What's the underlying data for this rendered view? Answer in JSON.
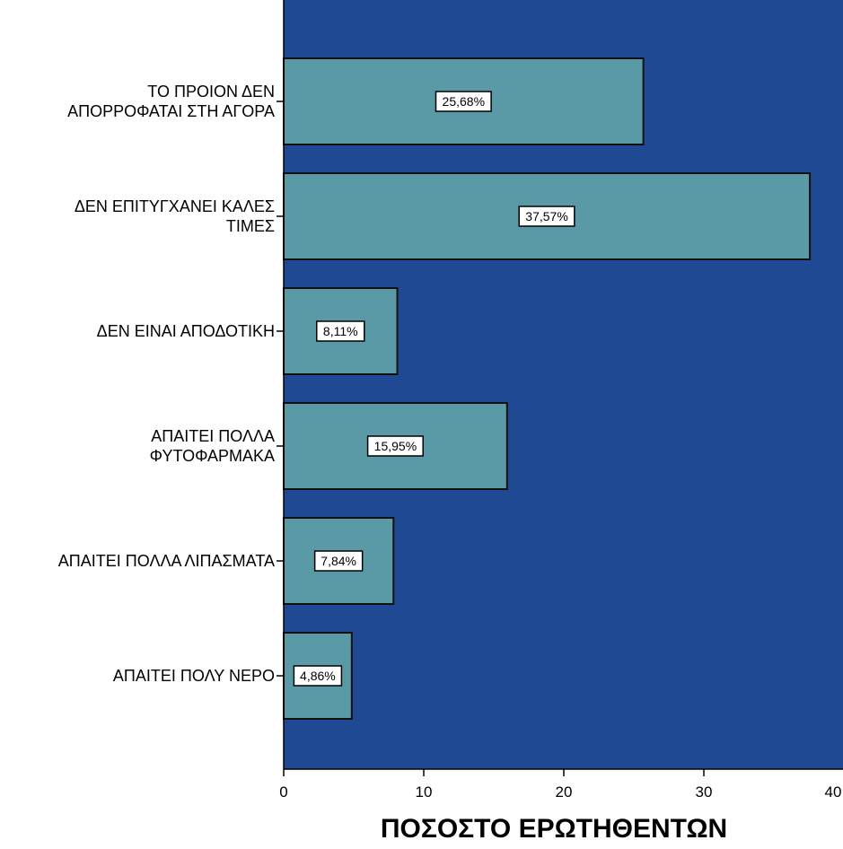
{
  "chart_data": {
    "type": "bar",
    "orientation": "horizontal",
    "categories": [
      [
        "ΤΟ ΠΡΟΙΟΝ ΔΕΝ",
        "ΑΠΟΡΡΟΦΑΤΑΙ ΣΤΗ ΑΓΟΡΑ"
      ],
      [
        "ΔΕΝ ΕΠΙΤΥΓΧΑΝΕΙ ΚΑΛΕΣ",
        "ΤΙΜΕΣ"
      ],
      [
        "ΔΕΝ ΕΙΝΑΙ ΑΠΟΔΟΤΙΚΗ"
      ],
      [
        "ΑΠΑΙΤΕΙ ΠΟΛΛΑ",
        "ΦΥΤΟΦΑΡΜΑΚΑ"
      ],
      [
        "ΑΠΑΙΤΕΙ ΠΟΛΛΑ ΛΙΠΑΣΜΑΤΑ"
      ],
      [
        "ΑΠΑΙΤΕΙ ΠΟΛΥ ΝΕΡΟ"
      ]
    ],
    "values": [
      25.68,
      37.57,
      8.11,
      15.95,
      7.84,
      4.86
    ],
    "data_labels": [
      "25,68%",
      "37,57%",
      "8,11%",
      "15,95%",
      "7,84%",
      "4,86%"
    ],
    "xlabel": "ΠΟΣΟΣΤΟ ΕΡΩΤΗΘΕΝΤΩΝ",
    "xlim": [
      0,
      40
    ],
    "xticks": [
      0,
      10,
      20,
      30,
      40
    ],
    "xtick_labels": [
      "0",
      "10",
      "20",
      "30",
      "40"
    ],
    "grid": false,
    "colors": {
      "plot_background": "#1f4a93",
      "bar_fill": "#5a9aa7",
      "bar_stroke": "#111111",
      "label_box": "#ffffff"
    }
  }
}
